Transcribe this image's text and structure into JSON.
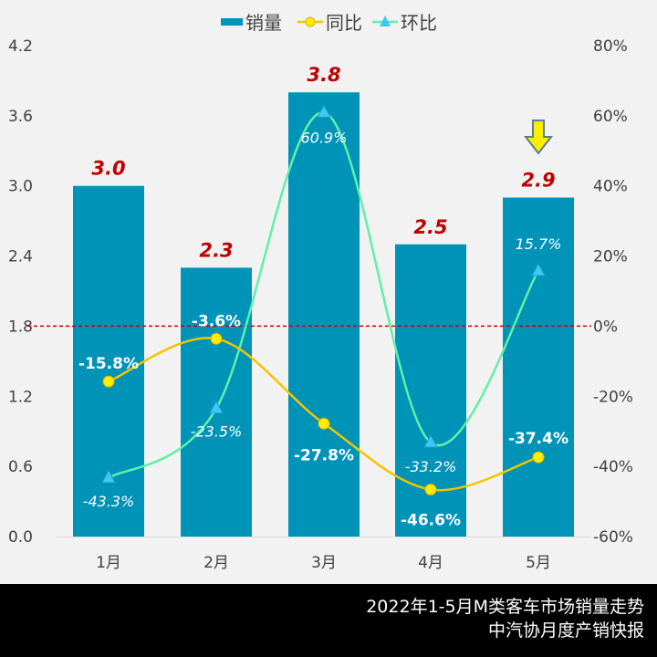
{
  "chart_data": {
    "type": "bar",
    "categories": [
      "1月",
      "2月",
      "3月",
      "4月",
      "5月"
    ],
    "series": [
      {
        "name": "销量",
        "type": "bar",
        "axis": "left",
        "values": [
          3.0,
          2.3,
          3.8,
          2.5,
          2.9
        ],
        "labels": [
          "3.0",
          "2.3",
          "3.8",
          "2.5",
          "2.9"
        ],
        "color": "#0093b8"
      },
      {
        "name": "同比",
        "type": "line",
        "axis": "right",
        "values": [
          -15.8,
          -3.6,
          -27.8,
          -46.6,
          -37.4
        ],
        "labels": [
          "-15.8%",
          "-3.6%",
          "-27.8%",
          "-46.6%",
          "-37.4%"
        ],
        "color": "#f5c400"
      },
      {
        "name": "环比",
        "type": "line",
        "axis": "right",
        "values": [
          -43.3,
          -23.5,
          60.9,
          -33.2,
          15.7
        ],
        "labels": [
          "-43.3%",
          "-23.5%",
          "60.9%",
          "-33.2%",
          "15.7%"
        ],
        "color": "#5ff0a8"
      }
    ],
    "left_axis": {
      "ylim": [
        0,
        4.2
      ],
      "ticks": [
        "0.0",
        "0.6",
        "1.2",
        "1.8",
        "2.4",
        "3.0",
        "3.6",
        "4.2"
      ]
    },
    "right_axis": {
      "ylim": [
        -60,
        80
      ],
      "ticks": [
        "-60%",
        "-40%",
        "-20%",
        "0%",
        "20%",
        "40%",
        "60%",
        "80%"
      ]
    },
    "reference_line": {
      "value": 0,
      "axis": "right",
      "color": "#cc0000",
      "style": "dashed"
    },
    "legend": "top",
    "grid": false,
    "highlight": {
      "category": "5月",
      "icon": "down-arrow-icon",
      "color": "#ffee00"
    }
  },
  "footer": {
    "title": "2022年1-5月M类客车市场销量走势",
    "source": "中汽协月度产销快报"
  }
}
